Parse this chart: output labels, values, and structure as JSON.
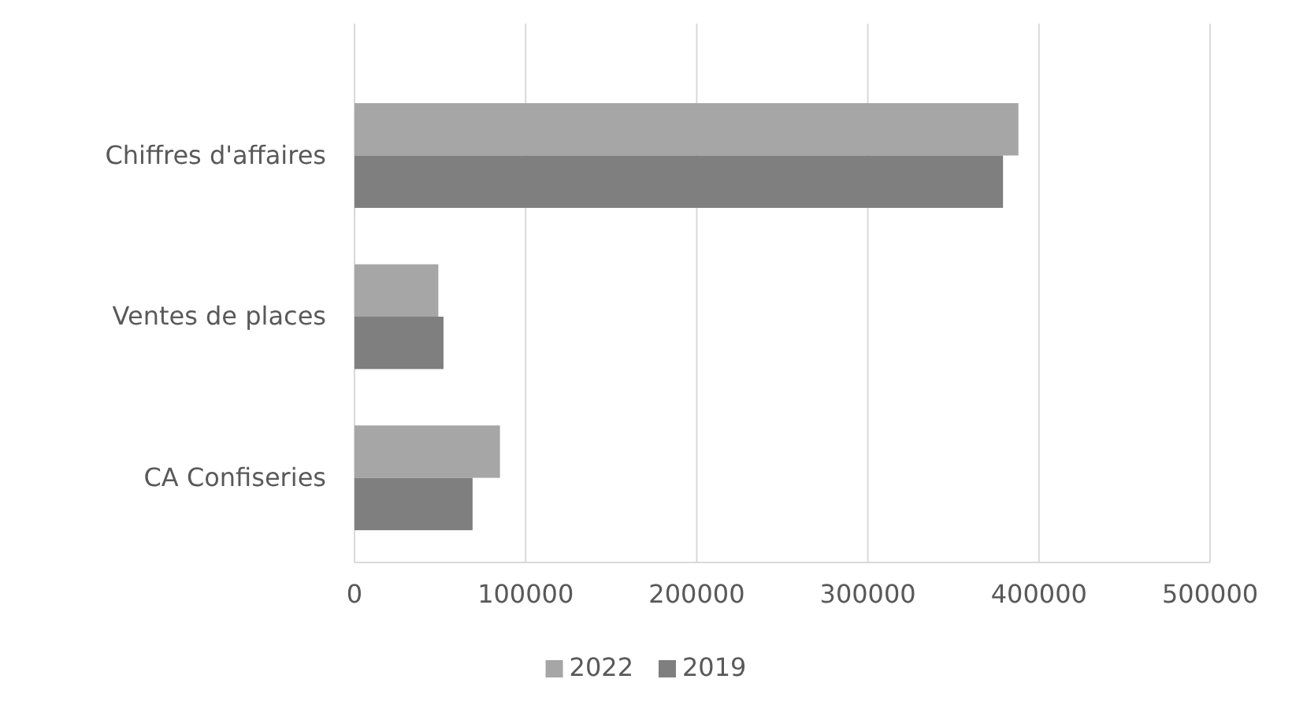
{
  "chart_data": {
    "type": "bar",
    "orientation": "horizontal",
    "categories": [
      "Chiffres d'affaires",
      "Ventes de places",
      "CA Confiseries"
    ],
    "series": [
      {
        "name": "2022",
        "color": "#a6a6a6",
        "values": [
          388000,
          49000,
          85000
        ]
      },
      {
        "name": "2019",
        "color": "#7f7f7f",
        "values": [
          379000,
          52000,
          69000
        ]
      }
    ],
    "xlim": [
      0,
      500000
    ],
    "xticks": [
      0,
      100000,
      200000,
      300000,
      400000,
      500000
    ],
    "grid": "x",
    "legend": "bottom"
  }
}
